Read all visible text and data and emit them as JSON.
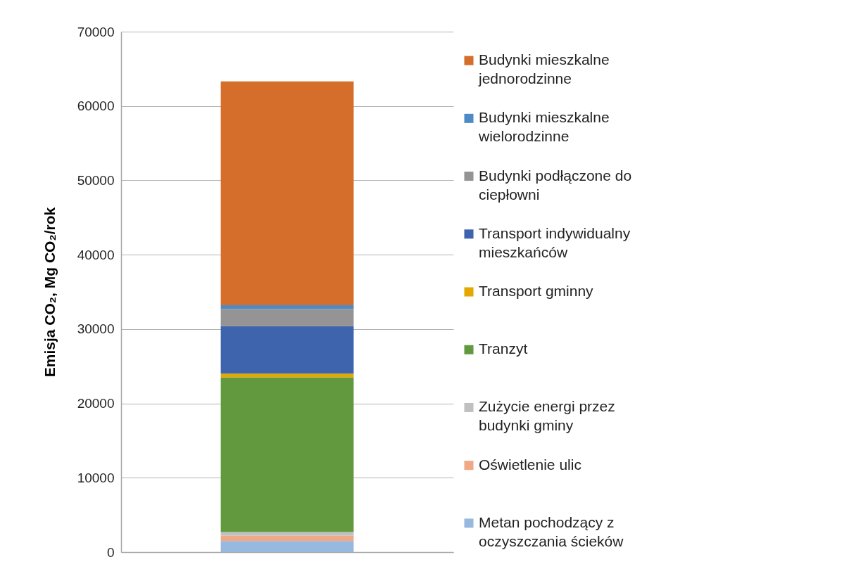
{
  "chart_data": {
    "type": "bar",
    "stacked": true,
    "ylabel": "Emisja CO₂, Mg CO₂/rok",
    "categories": [
      null
    ],
    "series": [
      {
        "name": "Metan pochodzący z oczyszczania ścieków",
        "color": "#97b9e0",
        "values": [
          1500
        ]
      },
      {
        "name": "Oświetlenie ulic",
        "color": "#f0a886",
        "values": [
          700
        ]
      },
      {
        "name": "Zużycie energi przez budynki gminy",
        "color": "#c0c0c0",
        "values": [
          500
        ]
      },
      {
        "name": "Tranzyt",
        "color": "#62993e",
        "values": [
          20800
        ]
      },
      {
        "name": "Transport gminny",
        "color": "#e4a800",
        "values": [
          500
        ]
      },
      {
        "name": "Transport indywidualny mieszkańców",
        "color": "#3d64ad",
        "values": [
          6400
        ]
      },
      {
        "name": "Budynki podłączone do ciepłowni",
        "color": "#949494",
        "values": [
          2300
        ]
      },
      {
        "name": "Budynki mieszkalne wielorodzinne",
        "color": "#4e8ac6",
        "values": [
          500
        ]
      },
      {
        "name": "Budynki mieszkalne jednorodzinne",
        "color": "#d46e2a",
        "values": [
          30100
        ]
      }
    ],
    "ylim": [
      0,
      70000
    ],
    "yticks": [
      0,
      10000,
      20000,
      30000,
      40000,
      50000,
      60000,
      70000
    ],
    "grid": "y",
    "legend": "right"
  }
}
